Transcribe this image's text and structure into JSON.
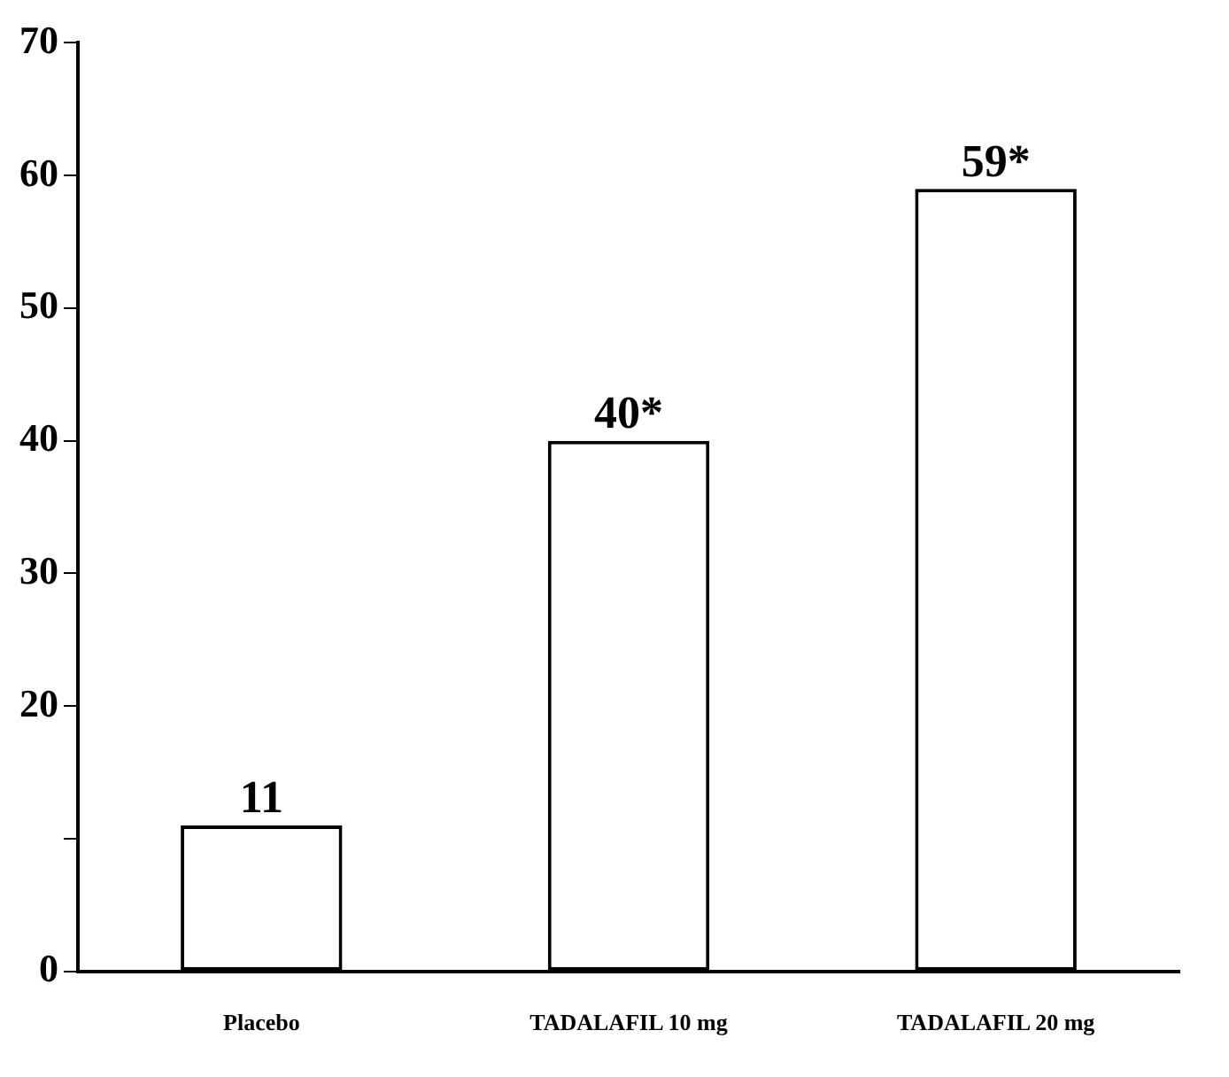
{
  "chart_data": {
    "type": "bar",
    "categories": [
      "Placebo",
      "TADALAFIL 10 mg",
      "TADALAFIL 20 mg"
    ],
    "values": [
      11,
      40,
      59
    ],
    "value_labels": [
      "11",
      "40*",
      "59*"
    ],
    "color": "#ffffff",
    "ylim": [
      0,
      70
    ],
    "yticks": [
      0,
      {
        "value": 10,
        "label": null
      },
      20,
      30,
      40,
      50,
      60,
      70
    ],
    "grid": false,
    "legend": false
  }
}
